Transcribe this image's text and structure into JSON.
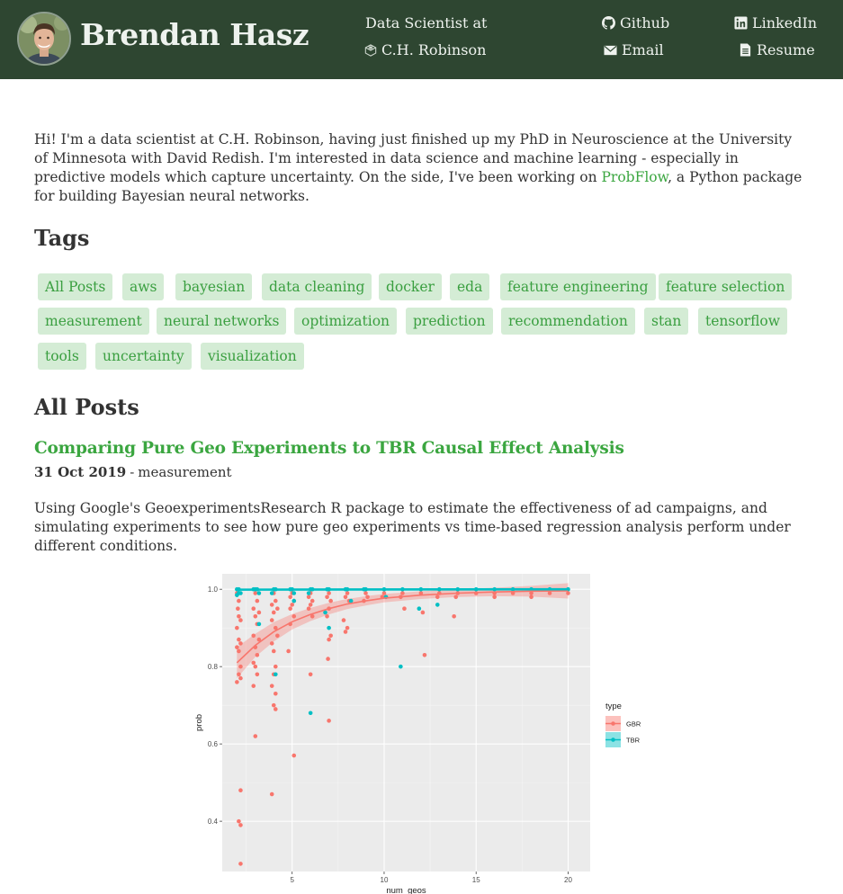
{
  "header": {
    "site_title": "Brendan Hasz",
    "job_line1": "Data Scientist at",
    "job_line2": "C.H. Robinson",
    "links": {
      "github": "Github",
      "linkedin": "LinkedIn",
      "email": "Email",
      "resume": "Resume"
    },
    "icons": {
      "company": "cube-icon",
      "github": "github-icon",
      "linkedin": "linkedin-icon",
      "email": "envelope-icon",
      "resume": "document-icon"
    }
  },
  "intro": {
    "text_before": "Hi! I'm a data scientist at C.H. Robinson, having just finished up my PhD in Neuroscience at the University of Minnesota with David Redish. I'm interested in data science and machine learning - especially in predictive models which capture uncertainty. On the side, I've been working on ",
    "link": "ProbFlow",
    "text_after": ", a Python package for building Bayesian neural networks."
  },
  "tags_heading": "Tags",
  "tags": [
    "All Posts",
    "aws",
    "bayesian",
    "data cleaning",
    "docker",
    "eda",
    "feature engineering",
    "feature selection",
    "measurement",
    "neural networks",
    "optimization",
    "prediction",
    "recommendation",
    "stan",
    "tensorflow",
    "tools",
    "uncertainty",
    "visualization"
  ],
  "posts_heading": "All Posts",
  "post": {
    "title": "Comparing Pure Geo Experiments to TBR Causal Effect Analysis",
    "date": "31 Oct 2019",
    "separator": "-",
    "tag": "measurement",
    "excerpt": "Using Google's GeoexperimentsResearch R package to estimate the effectiveness of ad campaigns, and simulating experiments to see how pure geo experiments vs time-based regression analysis perform under different conditions."
  },
  "colors": {
    "header_bg": "#2e4631",
    "link_green": "#3ba640",
    "tag_bg": "#d4ecd5",
    "gbr": "#f8766d",
    "tbr": "#00bfc4"
  },
  "chart_data": {
    "type": "scatter",
    "xlabel": "num_geos",
    "ylabel": "prob",
    "xlim": [
      1.2,
      21.2
    ],
    "ylim": [
      0.27,
      1.04
    ],
    "xticks": [
      5,
      10,
      15,
      20
    ],
    "yticks": [
      0.4,
      0.6,
      0.8,
      1.0
    ],
    "ytick_labels": [
      "0.4",
      "0.6",
      "0.8",
      "1.0"
    ],
    "legend": {
      "title": "type",
      "position": "right"
    },
    "series": [
      {
        "name": "GBR",
        "color": "#f8766d",
        "points": [
          [
            2,
            0.99
          ],
          [
            2.1,
            0.97
          ],
          [
            2.05,
            0.95
          ],
          [
            2.1,
            0.93
          ],
          [
            2.2,
            0.92
          ],
          [
            2,
            0.9
          ],
          [
            2.1,
            0.87
          ],
          [
            2.2,
            0.86
          ],
          [
            2,
            0.85
          ],
          [
            2.1,
            0.84
          ],
          [
            2.2,
            0.8
          ],
          [
            2.1,
            0.78
          ],
          [
            2.2,
            0.77
          ],
          [
            2,
            0.76
          ],
          [
            2.2,
            0.48
          ],
          [
            2.1,
            0.4
          ],
          [
            2.2,
            0.39
          ],
          [
            2.2,
            0.29
          ],
          [
            3,
            0.99
          ],
          [
            3.1,
            0.97
          ],
          [
            2.9,
            0.95
          ],
          [
            3.2,
            0.94
          ],
          [
            3,
            0.93
          ],
          [
            3.1,
            0.91
          ],
          [
            2.9,
            0.88
          ],
          [
            3.2,
            0.87
          ],
          [
            3,
            0.85
          ],
          [
            3.1,
            0.83
          ],
          [
            2.9,
            0.81
          ],
          [
            3,
            0.8
          ],
          [
            3.1,
            0.78
          ],
          [
            2.9,
            0.75
          ],
          [
            3,
            0.62
          ],
          [
            4,
            0.99
          ],
          [
            4.1,
            0.97
          ],
          [
            3.9,
            0.96
          ],
          [
            4.2,
            0.95
          ],
          [
            4,
            0.94
          ],
          [
            3.9,
            0.92
          ],
          [
            4.1,
            0.9
          ],
          [
            4.2,
            0.88
          ],
          [
            3.9,
            0.86
          ],
          [
            4,
            0.84
          ],
          [
            4.1,
            0.8
          ],
          [
            4,
            0.78
          ],
          [
            3.9,
            0.75
          ],
          [
            4.1,
            0.73
          ],
          [
            4,
            0.7
          ],
          [
            4.1,
            0.69
          ],
          [
            3.9,
            0.47
          ],
          [
            5,
            0.99
          ],
          [
            4.9,
            0.98
          ],
          [
            5.1,
            0.97
          ],
          [
            5,
            0.96
          ],
          [
            4.9,
            0.95
          ],
          [
            5.1,
            0.93
          ],
          [
            4.9,
            0.91
          ],
          [
            4.8,
            0.84
          ],
          [
            5.1,
            0.57
          ],
          [
            6,
            0.99
          ],
          [
            5.9,
            0.98
          ],
          [
            6.1,
            0.97
          ],
          [
            6,
            0.96
          ],
          [
            5.9,
            0.95
          ],
          [
            6.1,
            0.93
          ],
          [
            6,
            0.78
          ],
          [
            7,
            0.99
          ],
          [
            6.9,
            0.98
          ],
          [
            7.1,
            0.97
          ],
          [
            7,
            0.95
          ],
          [
            6.9,
            0.93
          ],
          [
            7.1,
            0.88
          ],
          [
            7,
            0.87
          ],
          [
            6.95,
            0.82
          ],
          [
            7,
            0.66
          ],
          [
            8,
            0.99
          ],
          [
            7.9,
            0.98
          ],
          [
            8.1,
            0.97
          ],
          [
            7.8,
            0.92
          ],
          [
            8,
            0.9
          ],
          [
            7.9,
            0.89
          ],
          [
            9,
            0.99
          ],
          [
            9.1,
            0.98
          ],
          [
            8.9,
            0.97
          ],
          [
            10,
            0.99
          ],
          [
            9.9,
            0.98
          ],
          [
            10.1,
            0.98
          ],
          [
            11,
            0.99
          ],
          [
            10.9,
            0.98
          ],
          [
            11.1,
            0.95
          ],
          [
            12,
            0.99
          ],
          [
            12.1,
            0.94
          ],
          [
            12.2,
            0.83
          ],
          [
            13,
            0.99
          ],
          [
            12.9,
            0.98
          ],
          [
            14,
            0.99
          ],
          [
            13.9,
            0.98
          ],
          [
            13.8,
            0.93
          ],
          [
            15,
            0.99
          ],
          [
            16,
            0.99
          ],
          [
            16,
            0.98
          ],
          [
            17,
            0.99
          ],
          [
            18,
            0.99
          ],
          [
            18,
            0.98
          ],
          [
            19,
            0.99
          ],
          [
            20,
            0.99
          ]
        ],
        "fit": [
          [
            2,
            0.81
          ],
          [
            3,
            0.855
          ],
          [
            4,
            0.89
          ],
          [
            5,
            0.916
          ],
          [
            6,
            0.935
          ],
          [
            7,
            0.95
          ],
          [
            8,
            0.962
          ],
          [
            9,
            0.97
          ],
          [
            10,
            0.977
          ],
          [
            12,
            0.985
          ],
          [
            14,
            0.99
          ],
          [
            16,
            0.993
          ],
          [
            18,
            0.995
          ],
          [
            20,
            0.996
          ]
        ],
        "band": [
          0.04,
          0.03,
          0.025,
          0.02,
          0.017,
          0.015,
          0.013,
          0.012,
          0.011,
          0.01,
          0.01,
          0.011,
          0.014,
          0.02
        ]
      },
      {
        "name": "TBR",
        "color": "#00bfc4",
        "points": [
          [
            2,
            1.0
          ],
          [
            2.1,
            1.0
          ],
          [
            2.2,
            0.99
          ],
          [
            2.1,
            0.99
          ],
          [
            2,
            0.985
          ],
          [
            3,
            1.0
          ],
          [
            3.1,
            1.0
          ],
          [
            2.9,
            1.0
          ],
          [
            3.2,
            0.99
          ],
          [
            3.2,
            0.91
          ],
          [
            4,
            1.0
          ],
          [
            4.1,
            1.0
          ],
          [
            3.9,
            0.99
          ],
          [
            4.1,
            0.78
          ],
          [
            5,
            1.0
          ],
          [
            4.9,
            1.0
          ],
          [
            5.1,
            0.99
          ],
          [
            5.1,
            0.97
          ],
          [
            6,
            1.0
          ],
          [
            6.1,
            1.0
          ],
          [
            5.9,
            0.99
          ],
          [
            6,
            0.68
          ],
          [
            7,
            1.0
          ],
          [
            6.9,
            1.0
          ],
          [
            6.8,
            0.94
          ],
          [
            7,
            0.9
          ],
          [
            8,
            1.0
          ],
          [
            7.9,
            1.0
          ],
          [
            8.2,
            0.97
          ],
          [
            9,
            1.0
          ],
          [
            8.9,
            1.0
          ],
          [
            10,
            1.0
          ],
          [
            10.1,
            0.98
          ],
          [
            11,
            1.0
          ],
          [
            10.9,
            0.8
          ],
          [
            12,
            1.0
          ],
          [
            11.9,
            0.95
          ],
          [
            13,
            1.0
          ],
          [
            12.9,
            0.96
          ],
          [
            14,
            1.0
          ],
          [
            15,
            1.0
          ],
          [
            16,
            1.0
          ],
          [
            17,
            1.0
          ],
          [
            18,
            1.0
          ],
          [
            19,
            1.0
          ],
          [
            20,
            1.0
          ]
        ],
        "fit": [
          [
            2,
            0.999
          ],
          [
            20,
            1.0
          ]
        ]
      }
    ]
  }
}
